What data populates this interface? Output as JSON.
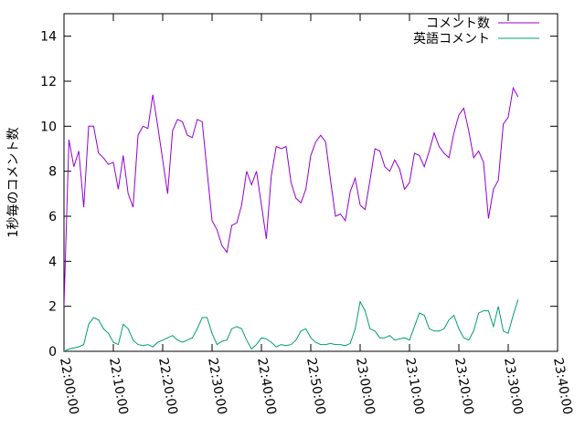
{
  "chart_data": {
    "type": "line",
    "title": "",
    "xlabel": "",
    "ylabel": "1秒毎のコメント数",
    "xlim": [
      "22:00:00",
      "23:40:00"
    ],
    "ylim": [
      0,
      15
    ],
    "x_ticks": [
      "22:00:00",
      "22:10:00",
      "22:20:00",
      "22:30:00",
      "22:40:00",
      "22:50:00",
      "23:00:00",
      "23:10:00",
      "23:20:00",
      "23:30:00",
      "23:40:00"
    ],
    "y_ticks": [
      "0",
      "2",
      "4",
      "6",
      "8",
      "10",
      "12",
      "14"
    ],
    "grid": false,
    "legend_position": "top-right",
    "x": [
      "22:00:00",
      "22:01:00",
      "22:02:00",
      "22:03:00",
      "22:04:00",
      "22:05:00",
      "22:06:00",
      "22:07:00",
      "22:08:00",
      "22:09:00",
      "22:10:00",
      "22:11:00",
      "22:12:00",
      "22:13:00",
      "22:14:00",
      "22:15:00",
      "22:16:00",
      "22:17:00",
      "22:18:00",
      "22:19:00",
      "22:20:00",
      "22:21:00",
      "22:22:00",
      "22:23:00",
      "22:24:00",
      "22:25:00",
      "22:26:00",
      "22:27:00",
      "22:28:00",
      "22:29:00",
      "22:30:00",
      "22:31:00",
      "22:32:00",
      "22:33:00",
      "22:34:00",
      "22:35:00",
      "22:36:00",
      "22:37:00",
      "22:38:00",
      "22:39:00",
      "22:40:00",
      "22:41:00",
      "22:42:00",
      "22:43:00",
      "22:44:00",
      "22:45:00",
      "22:46:00",
      "22:47:00",
      "22:48:00",
      "22:49:00",
      "22:50:00",
      "22:51:00",
      "22:52:00",
      "22:53:00",
      "22:54:00",
      "22:55:00",
      "22:56:00",
      "22:57:00",
      "22:58:00",
      "22:59:00",
      "23:00:00",
      "23:01:00",
      "23:02:00",
      "23:03:00",
      "23:04:00",
      "23:05:00",
      "23:06:00",
      "23:07:00",
      "23:08:00",
      "23:09:00",
      "23:10:00",
      "23:11:00",
      "23:12:00",
      "23:13:00",
      "23:14:00",
      "23:15:00",
      "23:16:00",
      "23:17:00",
      "23:18:00",
      "23:19:00",
      "23:20:00",
      "23:21:00",
      "23:22:00",
      "23:23:00",
      "23:24:00",
      "23:25:00",
      "23:26:00",
      "23:27:00",
      "23:28:00",
      "23:29:00",
      "23:30:00",
      "23:31:00",
      "23:32:00"
    ],
    "series": [
      {
        "name": "コメント数",
        "color": "#9400d3",
        "values": [
          2.0,
          9.4,
          8.2,
          8.9,
          6.4,
          10.0,
          10.0,
          8.8,
          8.6,
          8.3,
          8.4,
          7.2,
          8.7,
          7.0,
          6.4,
          9.6,
          10.0,
          9.9,
          11.4,
          10.0,
          8.5,
          7.0,
          9.8,
          10.3,
          10.2,
          9.6,
          9.5,
          10.3,
          10.2,
          8.0,
          5.8,
          5.4,
          4.7,
          4.4,
          5.6,
          5.7,
          6.5,
          8.0,
          7.4,
          8.0,
          6.5,
          5.0,
          7.8,
          9.1,
          9.0,
          9.1,
          7.5,
          6.8,
          6.6,
          7.2,
          8.7,
          9.3,
          9.6,
          9.3,
          7.6,
          6.0,
          6.1,
          5.8,
          7.1,
          7.7,
          6.5,
          6.3,
          7.6,
          9.0,
          8.9,
          8.2,
          8.0,
          8.5,
          8.1,
          7.2,
          7.5,
          8.8,
          8.7,
          8.2,
          8.9,
          9.7,
          9.1,
          8.8,
          8.6,
          9.7,
          10.5,
          10.8,
          9.8,
          8.6,
          8.9,
          8.4,
          5.9,
          7.2,
          7.6,
          10.1,
          10.4,
          11.7,
          11.3
        ]
      },
      {
        "name": "英語コメント",
        "color": "#009e73",
        "values": [
          0.0,
          0.1,
          0.15,
          0.2,
          0.3,
          1.2,
          1.5,
          1.4,
          1.0,
          0.8,
          0.4,
          0.3,
          1.2,
          1.0,
          0.5,
          0.3,
          0.25,
          0.3,
          0.2,
          0.4,
          0.5,
          0.6,
          0.7,
          0.5,
          0.4,
          0.5,
          0.6,
          1.0,
          1.5,
          1.5,
          0.8,
          0.3,
          0.45,
          0.5,
          1.0,
          1.1,
          1.0,
          0.5,
          0.1,
          0.3,
          0.6,
          0.55,
          0.4,
          0.2,
          0.3,
          0.25,
          0.3,
          0.5,
          0.9,
          1.0,
          0.6,
          0.4,
          0.3,
          0.3,
          0.35,
          0.3,
          0.3,
          0.25,
          0.35,
          1.0,
          2.2,
          1.8,
          1.0,
          0.9,
          0.6,
          0.6,
          0.7,
          0.5,
          0.55,
          0.6,
          0.5,
          1.1,
          1.7,
          1.6,
          1.0,
          0.9,
          0.9,
          1.0,
          1.4,
          1.6,
          1.0,
          0.6,
          0.5,
          0.9,
          1.7,
          1.8,
          1.8,
          1.1,
          2.0,
          0.9,
          0.8,
          1.6,
          2.3
        ]
      }
    ]
  }
}
